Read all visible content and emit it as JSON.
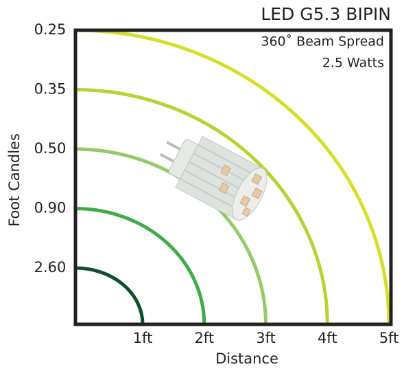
{
  "title": "LED G5.3 BIPIN",
  "subtitle": "360˚ Beam Spread",
  "wattage": "2.5 Watts",
  "y_axis_label": "Foot Candles",
  "x_axis_label": "Distance",
  "rings": [
    {
      "distance": "1ft",
      "foot_candles": "2.60",
      "color": "#0e4f2b"
    },
    {
      "distance": "2ft",
      "foot_candles": "0.90",
      "color": "#3fab49"
    },
    {
      "distance": "3ft",
      "foot_candles": "0.50",
      "color": "#93cb6b"
    },
    {
      "distance": "4ft",
      "foot_candles": "0.35",
      "color": "#b7d235"
    },
    {
      "distance": "5ft",
      "foot_candles": "0.25",
      "color": "#d5df2b"
    }
  ]
}
